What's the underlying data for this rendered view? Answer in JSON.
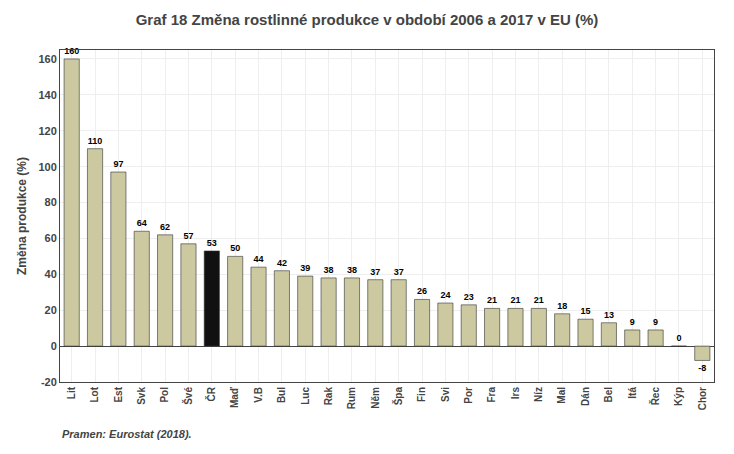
{
  "chart_data": {
    "type": "bar",
    "title": "Graf 18 Změna rostlinné produkce v období 2006 a 2017 v EU (%)",
    "ylabel": "Změna produkce (%)",
    "annotations": [
      "Pramen: Eurostat (2018)."
    ],
    "categories": [
      "Lit",
      "Lot",
      "Est",
      "Svk",
      "Pol",
      "Švé",
      "ČR",
      "Maď",
      "V.B",
      "Bul",
      "Luc",
      "Rak",
      "Rum",
      "Něm",
      "Špa",
      "Fin",
      "Svi",
      "Por",
      "Fra",
      "Irs",
      "Níz",
      "Mal",
      "Dán",
      "Bel",
      "Itá",
      "Řec",
      "Kýp",
      "Chor"
    ],
    "values": [
      160,
      110,
      97,
      64,
      62,
      57,
      53,
      50,
      44,
      42,
      39,
      38,
      38,
      37,
      37,
      26,
      24,
      23,
      21,
      21,
      21,
      18,
      15,
      13,
      9,
      9,
      0,
      -8
    ],
    "colors": [
      "#ccc9a0",
      "#ccc9a0",
      "#ccc9a0",
      "#ccc9a0",
      "#ccc9a0",
      "#ccc9a0",
      "#111111",
      "#ccc9a0",
      "#ccc9a0",
      "#ccc9a0",
      "#ccc9a0",
      "#ccc9a0",
      "#ccc9a0",
      "#ccc9a0",
      "#ccc9a0",
      "#ccc9a0",
      "#ccc9a0",
      "#ccc9a0",
      "#ccc9a0",
      "#ccc9a0",
      "#ccc9a0",
      "#ccc9a0",
      "#ccc9a0",
      "#ccc9a0",
      "#ccc9a0",
      "#ccc9a0",
      "#ccc9a0",
      "#ccc9a0"
    ],
    "ylim": [
      -20,
      165
    ],
    "yticks": [
      -20,
      0,
      20,
      40,
      60,
      80,
      100,
      120,
      140,
      160
    ],
    "grid": true,
    "data_labels": true
  }
}
